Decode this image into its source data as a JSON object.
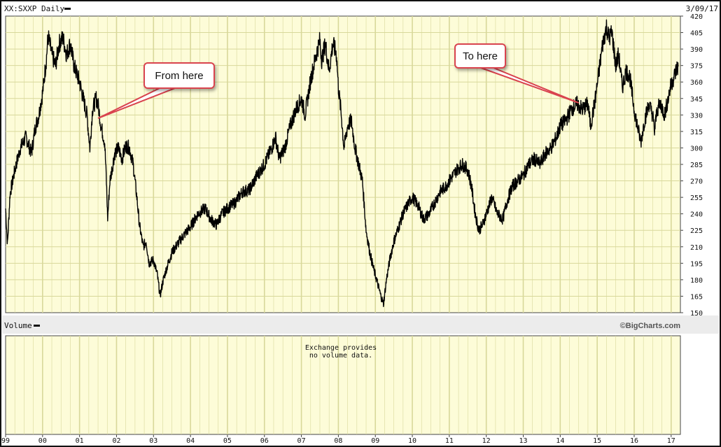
{
  "chart_data": {
    "type": "line",
    "title": "XX:SXXP Daily",
    "date_label": "3/09/17",
    "y_axis": {
      "ticks": [
        150,
        165,
        180,
        195,
        210,
        225,
        240,
        255,
        270,
        285,
        300,
        315,
        330,
        345,
        360,
        375,
        390,
        405,
        420
      ],
      "range": [
        150,
        420
      ]
    },
    "x_axis": {
      "labels": [
        "99",
        "00",
        "01",
        "02",
        "03",
        "04",
        "05",
        "06",
        "07",
        "08",
        "09",
        "10",
        "11",
        "12",
        "13",
        "14",
        "15",
        "16",
        "17"
      ],
      "range": [
        1999.0,
        2017.25
      ]
    },
    "series": [
      {
        "values": [
          [
            1999.0,
            245
          ],
          [
            1999.05,
            212
          ],
          [
            1999.12,
            258
          ],
          [
            1999.25,
            280
          ],
          [
            1999.4,
            300
          ],
          [
            1999.55,
            310
          ],
          [
            1999.7,
            295
          ],
          [
            1999.8,
            318
          ],
          [
            1999.9,
            330
          ],
          [
            2000.0,
            350
          ],
          [
            2000.1,
            380
          ],
          [
            2000.15,
            402
          ],
          [
            2000.25,
            385
          ],
          [
            2000.35,
            375
          ],
          [
            2000.45,
            395
          ],
          [
            2000.55,
            400
          ],
          [
            2000.65,
            385
          ],
          [
            2000.75,
            395
          ],
          [
            2000.85,
            375
          ],
          [
            2001.0,
            360
          ],
          [
            2001.1,
            345
          ],
          [
            2001.2,
            330
          ],
          [
            2001.28,
            300
          ],
          [
            2001.35,
            335
          ],
          [
            2001.45,
            345
          ],
          [
            2001.5,
            340
          ],
          [
            2001.58,
            320
          ],
          [
            2001.68,
            305
          ],
          [
            2001.72,
            275
          ],
          [
            2001.76,
            236
          ],
          [
            2001.82,
            270
          ],
          [
            2001.9,
            285
          ],
          [
            2001.95,
            295
          ],
          [
            2002.05,
            300
          ],
          [
            2002.15,
            290
          ],
          [
            2002.25,
            302
          ],
          [
            2002.35,
            300
          ],
          [
            2002.45,
            285
          ],
          [
            2002.55,
            255
          ],
          [
            2002.62,
            230
          ],
          [
            2002.72,
            210
          ],
          [
            2002.8,
            215
          ],
          [
            2002.88,
            195
          ],
          [
            2003.0,
            198
          ],
          [
            2003.1,
            185
          ],
          [
            2003.18,
            165
          ],
          [
            2003.25,
            178
          ],
          [
            2003.35,
            190
          ],
          [
            2003.5,
            205
          ],
          [
            2003.7,
            215
          ],
          [
            2003.85,
            222
          ],
          [
            2004.0,
            228
          ],
          [
            2004.2,
            240
          ],
          [
            2004.4,
            245
          ],
          [
            2004.55,
            235
          ],
          [
            2004.7,
            230
          ],
          [
            2004.85,
            240
          ],
          [
            2005.0,
            245
          ],
          [
            2005.2,
            250
          ],
          [
            2005.4,
            260
          ],
          [
            2005.6,
            262
          ],
          [
            2005.8,
            275
          ],
          [
            2006.0,
            285
          ],
          [
            2006.2,
            300
          ],
          [
            2006.3,
            310
          ],
          [
            2006.4,
            290
          ],
          [
            2006.55,
            300
          ],
          [
            2006.7,
            320
          ],
          [
            2006.85,
            335
          ],
          [
            2007.0,
            345
          ],
          [
            2007.1,
            330
          ],
          [
            2007.25,
            362
          ],
          [
            2007.4,
            385
          ],
          [
            2007.5,
            398
          ],
          [
            2007.55,
            380
          ],
          [
            2007.65,
            395
          ],
          [
            2007.75,
            370
          ],
          [
            2007.85,
            395
          ],
          [
            2007.95,
            385
          ],
          [
            2008.0,
            355
          ],
          [
            2008.08,
            330
          ],
          [
            2008.15,
            300
          ],
          [
            2008.25,
            320
          ],
          [
            2008.35,
            325
          ],
          [
            2008.45,
            300
          ],
          [
            2008.55,
            285
          ],
          [
            2008.65,
            270
          ],
          [
            2008.75,
            225
          ],
          [
            2008.85,
            205
          ],
          [
            2008.95,
            190
          ],
          [
            2009.05,
            178
          ],
          [
            2009.15,
            165
          ],
          [
            2009.22,
            158
          ],
          [
            2009.3,
            180
          ],
          [
            2009.4,
            200
          ],
          [
            2009.5,
            215
          ],
          [
            2009.6,
            225
          ],
          [
            2009.75,
            240
          ],
          [
            2009.9,
            250
          ],
          [
            2010.0,
            255
          ],
          [
            2010.15,
            248
          ],
          [
            2010.3,
            235
          ],
          [
            2010.45,
            240
          ],
          [
            2010.6,
            250
          ],
          [
            2010.75,
            260
          ],
          [
            2010.9,
            265
          ],
          [
            2011.0,
            270
          ],
          [
            2011.2,
            280
          ],
          [
            2011.35,
            285
          ],
          [
            2011.5,
            280
          ],
          [
            2011.6,
            265
          ],
          [
            2011.7,
            240
          ],
          [
            2011.8,
            225
          ],
          [
            2011.9,
            230
          ],
          [
            2012.0,
            240
          ],
          [
            2012.15,
            255
          ],
          [
            2012.3,
            240
          ],
          [
            2012.45,
            235
          ],
          [
            2012.55,
            250
          ],
          [
            2012.7,
            265
          ],
          [
            2012.85,
            270
          ],
          [
            2013.0,
            275
          ],
          [
            2013.15,
            285
          ],
          [
            2013.3,
            290
          ],
          [
            2013.45,
            285
          ],
          [
            2013.6,
            295
          ],
          [
            2013.75,
            300
          ],
          [
            2013.9,
            310
          ],
          [
            2014.0,
            320
          ],
          [
            2014.15,
            325
          ],
          [
            2014.3,
            335
          ],
          [
            2014.45,
            340
          ],
          [
            2014.6,
            335
          ],
          [
            2014.75,
            340
          ],
          [
            2014.82,
            320
          ],
          [
            2014.9,
            335
          ],
          [
            2014.95,
            345
          ],
          [
            2015.05,
            370
          ],
          [
            2015.15,
            395
          ],
          [
            2015.25,
            410
          ],
          [
            2015.32,
            400
          ],
          [
            2015.4,
            405
          ],
          [
            2015.5,
            375
          ],
          [
            2015.58,
            385
          ],
          [
            2015.68,
            355
          ],
          [
            2015.78,
            370
          ],
          [
            2015.88,
            365
          ],
          [
            2016.0,
            335
          ],
          [
            2016.1,
            318
          ],
          [
            2016.18,
            305
          ],
          [
            2016.28,
            325
          ],
          [
            2016.4,
            340
          ],
          [
            2016.5,
            330
          ],
          [
            2016.55,
            315
          ],
          [
            2016.62,
            335
          ],
          [
            2016.72,
            340
          ],
          [
            2016.82,
            330
          ],
          [
            2016.92,
            345
          ],
          [
            2017.0,
            358
          ],
          [
            2017.08,
            365
          ],
          [
            2017.15,
            372
          ],
          [
            2017.19,
            374
          ]
        ]
      }
    ],
    "annotations": [
      {
        "text": "From here",
        "x": 2001.5,
        "y": 327
      },
      {
        "text": "To here",
        "x": 2014.5,
        "y": 341
      }
    ],
    "volume_panel": {
      "label": "Volume",
      "message_line1": "Exchange provides",
      "message_line2": "no volume data."
    },
    "watermark": "©BigCharts.com",
    "grid": true,
    "background": "#fdfcd8",
    "grid_color": "#d8d89a",
    "line_color": "#000000",
    "callout_border_color": "#d9434e"
  }
}
